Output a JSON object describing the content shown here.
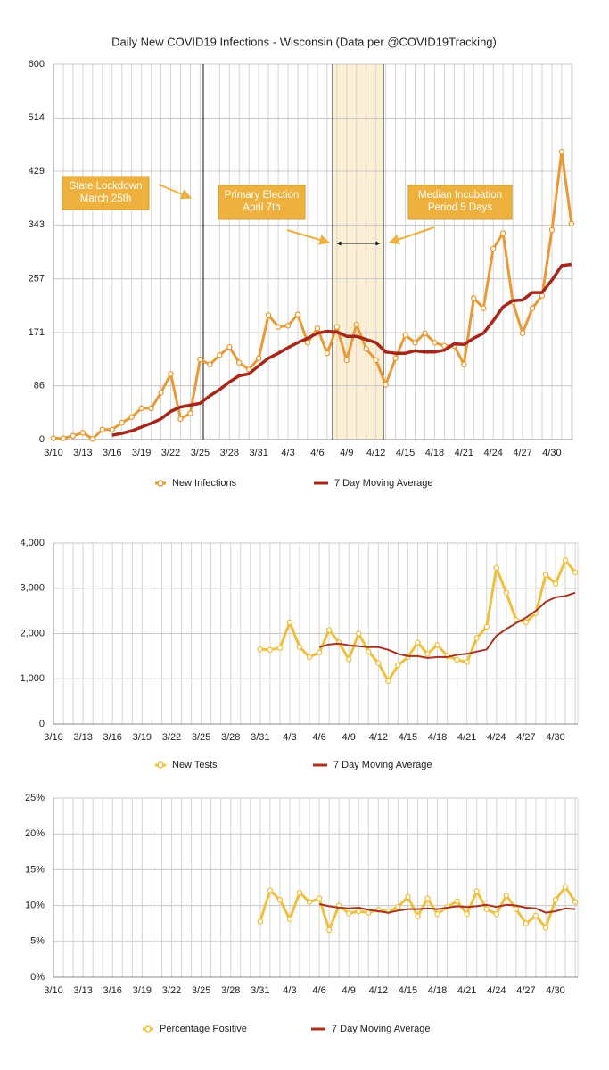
{
  "chart_data": [
    {
      "type": "line",
      "title": "Daily New COVID19 Infections - Wisconsin (Data per @COVID19Tracking)",
      "categories": [
        "3/10",
        null,
        null,
        "3/13",
        null,
        null,
        "3/16",
        null,
        null,
        "3/19",
        null,
        null,
        "3/22",
        null,
        null,
        "3/25",
        null,
        null,
        "3/28",
        null,
        null,
        "3/31",
        null,
        null,
        "4/3",
        null,
        null,
        "4/6",
        null,
        null,
        "4/9",
        null,
        null,
        "4/12",
        null,
        null,
        "4/15",
        null,
        null,
        "4/18",
        null,
        null,
        "4/21",
        null,
        null,
        "4/24",
        null,
        null,
        "4/27",
        null,
        null,
        "4/30",
        null,
        null
      ],
      "series": [
        {
          "name": "New Infections",
          "color": "#e99a36",
          "marker": true,
          "values": [
            2,
            2,
            6,
            11,
            1,
            16,
            16,
            27,
            36,
            50,
            50,
            75,
            105,
            33,
            42,
            128,
            120,
            135,
            148,
            123,
            112,
            130,
            199,
            180,
            182,
            200,
            155,
            178,
            138,
            180,
            127,
            184,
            145,
            127,
            88,
            130,
            167,
            155,
            170,
            155,
            150,
            150,
            120,
            226,
            210,
            305,
            330,
            220,
            170,
            210,
            230,
            335,
            460,
            345
          ]
        },
        {
          "name": "7 Day Moving Average",
          "color": "#a8251a",
          "marker": false,
          "values": [
            null,
            null,
            null,
            null,
            null,
            null,
            7,
            10,
            14,
            20,
            26,
            33,
            45,
            52,
            55,
            58,
            70,
            80,
            92,
            102,
            105,
            118,
            130,
            138,
            147,
            155,
            162,
            170,
            173,
            172,
            165,
            165,
            160,
            155,
            140,
            138,
            138,
            142,
            140,
            140,
            143,
            153,
            152,
            162,
            170,
            190,
            212,
            222,
            223,
            235,
            235,
            255,
            278,
            280
          ]
        }
      ],
      "ylim": [
        0,
        600
      ],
      "yticks": [
        0,
        86,
        171,
        257,
        343,
        429,
        514,
        600
      ],
      "grid": true,
      "annotations": [
        {
          "lines": [
            "State Lockdown",
            "March 25th"
          ]
        },
        {
          "lines": [
            "Primary Election",
            "April 7th"
          ]
        },
        {
          "lines": [
            "Median Incubation",
            "Period 5 Days"
          ]
        }
      ]
    },
    {
      "type": "line",
      "categories": [
        "3/10",
        null,
        null,
        "3/13",
        null,
        null,
        "3/16",
        null,
        null,
        "3/19",
        null,
        null,
        "3/22",
        null,
        null,
        "3/25",
        null,
        null,
        "3/28",
        null,
        null,
        "3/31",
        null,
        null,
        "4/3",
        null,
        null,
        "4/6",
        null,
        null,
        "4/9",
        null,
        null,
        "4/12",
        null,
        null,
        "4/15",
        null,
        null,
        "4/18",
        null,
        null,
        "4/21",
        null,
        null,
        "4/24",
        null,
        null,
        "4/27",
        null,
        null,
        "4/30",
        null,
        null
      ],
      "series": [
        {
          "name": "New Tests",
          "color": "#f0bf3c",
          "marker": true,
          "values": [
            null,
            null,
            null,
            null,
            null,
            null,
            null,
            null,
            null,
            null,
            null,
            null,
            null,
            null,
            null,
            null,
            null,
            null,
            null,
            null,
            null,
            1650,
            1640,
            1680,
            2250,
            1700,
            1480,
            1580,
            2080,
            1800,
            1430,
            2000,
            1600,
            1350,
            950,
            1300,
            1480,
            1800,
            1550,
            1750,
            1500,
            1420,
            1370,
            1900,
            2150,
            3450,
            2900,
            2300,
            2250,
            2450,
            3300,
            3100,
            3620,
            3350
          ]
        },
        {
          "name": "7 Day Moving Average",
          "color": "#a8321f",
          "marker": false,
          "values": [
            null,
            null,
            null,
            null,
            null,
            null,
            null,
            null,
            null,
            null,
            null,
            null,
            null,
            null,
            null,
            null,
            null,
            null,
            null,
            null,
            null,
            null,
            null,
            null,
            null,
            null,
            null,
            1700,
            1760,
            1780,
            1740,
            1720,
            1700,
            1700,
            1640,
            1550,
            1500,
            1500,
            1460,
            1480,
            1480,
            1530,
            1550,
            1600,
            1650,
            1950,
            2100,
            2230,
            2350,
            2500,
            2700,
            2800,
            2830,
            2900
          ]
        }
      ],
      "ylim": [
        0,
        4000
      ],
      "yticks": [
        0,
        {
          "value": 1000,
          "label": "1,000"
        },
        {
          "value": 2000,
          "label": "2,000"
        },
        {
          "value": 3000,
          "label": "3,000"
        },
        {
          "value": 4000,
          "label": "4,000"
        }
      ],
      "grid": true
    },
    {
      "type": "line",
      "categories": [
        "3/10",
        null,
        null,
        "3/13",
        null,
        null,
        "3/16",
        null,
        null,
        "3/19",
        null,
        null,
        "3/22",
        null,
        null,
        "3/25",
        null,
        null,
        "3/28",
        null,
        null,
        "3/31",
        null,
        null,
        "4/3",
        null,
        null,
        "4/6",
        null,
        null,
        "4/9",
        null,
        null,
        "4/12",
        null,
        null,
        "4/15",
        null,
        null,
        "4/18",
        null,
        null,
        "4/21",
        null,
        null,
        "4/24",
        null,
        null,
        "4/27",
        null,
        null,
        "4/30",
        null,
        null
      ],
      "series": [
        {
          "name": "Percentage Positive",
          "color": "#f0bf3c",
          "marker": true,
          "values": [
            null,
            null,
            null,
            null,
            null,
            null,
            null,
            null,
            null,
            null,
            null,
            null,
            null,
            null,
            null,
            null,
            null,
            null,
            null,
            null,
            null,
            7.8,
            12.1,
            10.8,
            8.1,
            11.8,
            10.5,
            11.0,
            6.6,
            10.0,
            8.9,
            9.2,
            9.0,
            9.4,
            9.2,
            9.8,
            11.2,
            8.5,
            11.0,
            8.8,
            9.8,
            10.6,
            8.8,
            12.0,
            9.5,
            8.8,
            11.4,
            9.5,
            7.5,
            8.6,
            6.9,
            10.8,
            12.6,
            10.5
          ]
        },
        {
          "name": "7 Day Moving Average",
          "color": "#a8321f",
          "marker": false,
          "values": [
            null,
            null,
            null,
            null,
            null,
            null,
            null,
            null,
            null,
            null,
            null,
            null,
            null,
            null,
            null,
            null,
            null,
            null,
            null,
            null,
            null,
            null,
            null,
            null,
            null,
            null,
            null,
            10.2,
            9.9,
            9.7,
            9.6,
            9.7,
            9.4,
            9.2,
            9.0,
            9.3,
            9.5,
            9.5,
            9.6,
            9.5,
            9.7,
            9.9,
            9.8,
            9.9,
            10.1,
            9.8,
            10.1,
            10.0,
            9.7,
            9.6,
            9.0,
            9.2,
            9.6,
            9.5
          ]
        }
      ],
      "ylim": [
        0,
        25
      ],
      "yticks": [
        {
          "value": 0,
          "label": "0%"
        },
        {
          "value": 5,
          "label": "5%"
        },
        {
          "value": 10,
          "label": "10%"
        },
        {
          "value": 15,
          "label": "15%"
        },
        {
          "value": 20,
          "label": "20%"
        },
        {
          "value": 25,
          "label": "25%"
        }
      ],
      "grid": true
    }
  ]
}
